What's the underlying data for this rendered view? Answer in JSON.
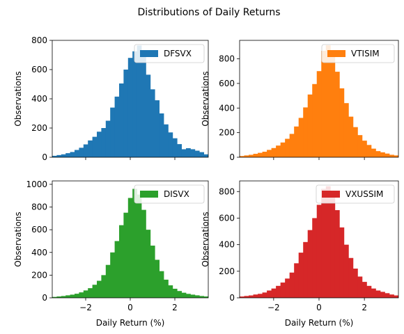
{
  "figure_title": "Distributions of Daily Returns",
  "chart_data": [
    {
      "type": "bar",
      "title": "",
      "xlabel": "",
      "ylabel": "Observations",
      "legend": {
        "label": "DFSVX",
        "placement": "top-right"
      },
      "color": "#1f77b4",
      "xlim": [
        -3.5,
        3.5
      ],
      "ylim": [
        0,
        800
      ],
      "x_ticks": [
        -2,
        0,
        2
      ],
      "x_tick_labels": [
        "",
        "",
        ""
      ],
      "y_ticks": [
        0,
        200,
        400,
        600,
        800
      ],
      "y_tick_labels": [
        "0",
        "200",
        "400",
        "600",
        "800"
      ],
      "bin_width": 0.2,
      "bin_start": -3.5,
      "values": [
        10,
        15,
        20,
        28,
        36,
        50,
        65,
        88,
        115,
        140,
        175,
        200,
        250,
        340,
        415,
        505,
        600,
        680,
        725,
        765,
        690,
        565,
        465,
        390,
        300,
        225,
        170,
        130,
        90,
        55,
        62,
        55,
        45,
        35,
        20
      ]
    },
    {
      "type": "bar",
      "title": "",
      "xlabel": "",
      "ylabel": "Observations",
      "legend": {
        "label": "VTISIM",
        "placement": "top-right"
      },
      "color": "#ff7f0e",
      "xlim": [
        -3.5,
        3.5
      ],
      "ylim": [
        0,
        950
      ],
      "x_ticks": [
        -2,
        0,
        2
      ],
      "x_tick_labels": [
        "",
        "",
        ""
      ],
      "y_ticks": [
        0,
        200,
        400,
        600,
        800
      ],
      "y_tick_labels": [
        "0",
        "200",
        "400",
        "600",
        "800"
      ],
      "bin_width": 0.2,
      "bin_start": -3.5,
      "values": [
        10,
        15,
        20,
        28,
        36,
        45,
        60,
        75,
        95,
        120,
        150,
        190,
        250,
        320,
        405,
        510,
        595,
        700,
        865,
        910,
        830,
        695,
        560,
        440,
        330,
        245,
        180,
        135,
        100,
        70,
        50,
        40,
        30,
        20,
        15
      ]
    },
    {
      "type": "bar",
      "title": "",
      "xlabel": "Daily Return (%)",
      "ylabel": "Observations",
      "legend": {
        "label": "DISVX",
        "placement": "top-right"
      },
      "color": "#2ca02c",
      "xlim": [
        -3.5,
        3.5
      ],
      "ylim": [
        0,
        1030
      ],
      "x_ticks": [
        -2,
        0,
        2
      ],
      "x_tick_labels": [
        "−2",
        "0",
        "2"
      ],
      "y_ticks": [
        0,
        200,
        400,
        600,
        800,
        1000
      ],
      "y_tick_labels": [
        "0",
        "200",
        "400",
        "600",
        "800",
        "1000"
      ],
      "bin_width": 0.2,
      "bin_start": -3.5,
      "values": [
        8,
        12,
        16,
        22,
        28,
        36,
        48,
        65,
        85,
        115,
        150,
        200,
        290,
        400,
        500,
        640,
        750,
        880,
        960,
        910,
        775,
        600,
        460,
        335,
        235,
        160,
        110,
        80,
        60,
        45,
        35,
        28,
        22,
        16,
        12
      ]
    },
    {
      "type": "bar",
      "title": "",
      "xlabel": "Daily Return (%)",
      "ylabel": "Observations",
      "legend": {
        "label": "VXUSSIM",
        "placement": "top-right"
      },
      "color": "#d62728",
      "xlim": [
        -3.5,
        3.5
      ],
      "ylim": [
        0,
        880
      ],
      "x_ticks": [
        -2,
        0,
        2
      ],
      "x_tick_labels": [
        "−2",
        "0",
        "2"
      ],
      "y_ticks": [
        0,
        200,
        400,
        600,
        800
      ],
      "y_tick_labels": [
        "0",
        "200",
        "400",
        "600",
        "800"
      ],
      "bin_width": 0.2,
      "bin_start": -3.5,
      "values": [
        10,
        14,
        18,
        25,
        30,
        40,
        55,
        70,
        90,
        115,
        145,
        190,
        260,
        340,
        420,
        510,
        600,
        700,
        820,
        840,
        775,
        660,
        530,
        400,
        300,
        220,
        160,
        120,
        90,
        70,
        55,
        45,
        35,
        25,
        18
      ]
    }
  ]
}
